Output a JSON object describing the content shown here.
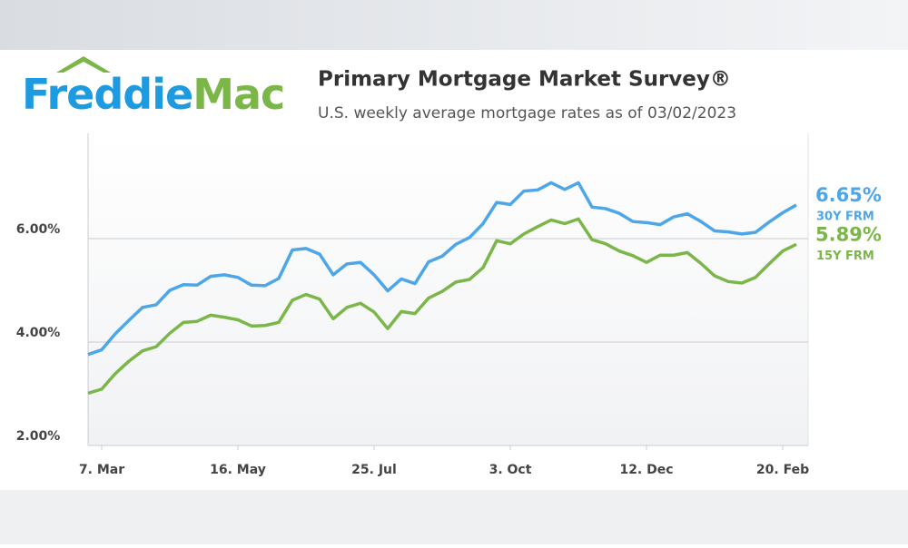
{
  "header": {
    "logo_left": "Freddie",
    "logo_right": "Mac"
  },
  "chart_data": {
    "type": "line",
    "title": "Primary Mortgage Market Survey®",
    "subtitle": "U.S. weekly average mortgage rates as of 03/02/2023",
    "categories": [
      null,
      "7. Mar",
      null,
      null,
      null,
      null,
      null,
      null,
      null,
      null,
      null,
      "16. May",
      null,
      null,
      null,
      null,
      null,
      null,
      null,
      null,
      null,
      "25. Jul",
      null,
      null,
      null,
      null,
      null,
      null,
      null,
      null,
      null,
      "3. Oct",
      null,
      null,
      null,
      null,
      null,
      null,
      null,
      null,
      null,
      "12. Dec",
      null,
      null,
      null,
      null,
      null,
      null,
      null,
      null,
      null,
      "20. Feb",
      null
    ],
    "series": [
      {
        "name": "30Y FRM",
        "color": "#4da6e8",
        "values": [
          3.76,
          3.85,
          4.16,
          4.42,
          4.67,
          4.72,
          5.0,
          5.11,
          5.1,
          5.27,
          5.3,
          5.25,
          5.1,
          5.09,
          5.23,
          5.78,
          5.81,
          5.7,
          5.3,
          5.51,
          5.54,
          5.3,
          4.99,
          5.22,
          5.13,
          5.55,
          5.66,
          5.89,
          6.02,
          6.29,
          6.7,
          6.66,
          6.92,
          6.94,
          7.08,
          6.95,
          7.08,
          6.61,
          6.58,
          6.49,
          6.33,
          6.31,
          6.27,
          6.42,
          6.48,
          6.33,
          6.15,
          6.13,
          6.09,
          6.12,
          6.32,
          6.5,
          6.65
        ],
        "value_labels": [
          null,
          null,
          null,
          null,
          null,
          null,
          null,
          null,
          null,
          null,
          null,
          null,
          null,
          null,
          null,
          null,
          null,
          null,
          null,
          null,
          null,
          null,
          null,
          null,
          null,
          null,
          null,
          null,
          null,
          null,
          null,
          null,
          null,
          null,
          null,
          null,
          null,
          null,
          null,
          null,
          null,
          null,
          null,
          null,
          null,
          null,
          null,
          null,
          null,
          null,
          null,
          null,
          "6.65%"
        ]
      },
      {
        "name": "15Y FRM",
        "color": "#7ab648",
        "values": [
          3.01,
          3.09,
          3.39,
          3.63,
          3.83,
          3.91,
          4.17,
          4.38,
          4.4,
          4.52,
          4.48,
          4.43,
          4.31,
          4.32,
          4.38,
          4.81,
          4.92,
          4.83,
          4.45,
          4.67,
          4.75,
          4.58,
          4.26,
          4.59,
          4.55,
          4.85,
          4.98,
          5.16,
          5.21,
          5.44,
          5.96,
          5.9,
          6.09,
          6.23,
          6.36,
          6.29,
          6.38,
          5.98,
          5.9,
          5.76,
          5.67,
          5.54,
          5.68,
          5.68,
          5.73,
          5.52,
          5.28,
          5.17,
          5.14,
          5.25,
          5.51,
          5.76,
          5.89
        ],
        "value_labels": [
          null,
          null,
          null,
          null,
          null,
          null,
          null,
          null,
          null,
          null,
          null,
          null,
          null,
          null,
          null,
          null,
          null,
          null,
          null,
          null,
          null,
          null,
          null,
          null,
          null,
          null,
          null,
          null,
          null,
          null,
          null,
          null,
          null,
          null,
          null,
          null,
          null,
          null,
          null,
          null,
          null,
          null,
          null,
          null,
          null,
          null,
          null,
          null,
          null,
          null,
          null,
          null,
          "5.89%"
        ]
      }
    ],
    "ylim": [
      2,
      8
    ],
    "yticks": [
      {
        "value": 2,
        "label": "2.00%"
      },
      {
        "value": 4,
        "label": "4.00%"
      },
      {
        "value": 6,
        "label": "6.00%"
      }
    ],
    "grid": true
  }
}
